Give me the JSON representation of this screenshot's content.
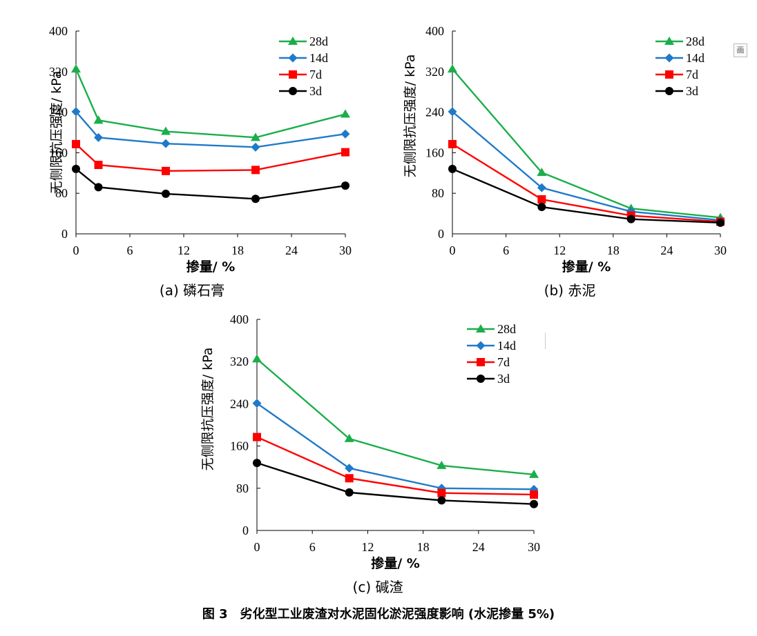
{
  "figure_caption": "图 3　劣化型工业废渣对水泥固化淤泥强度影响 (水泥掺量 5%)",
  "side_icon_glyph": "画",
  "chart_data": [
    {
      "type": "line",
      "panel_label": "(a)  磷石膏",
      "xlabel": "掺量/ %",
      "ylabel": "无侧限抗压强度/ kPa",
      "xlim": [
        0,
        30
      ],
      "ylim": [
        0,
        400
      ],
      "xticks": [
        0,
        6,
        12,
        18,
        24,
        30
      ],
      "yticks": [
        0,
        80,
        160,
        240,
        320,
        400
      ],
      "x": [
        0,
        2.5,
        10,
        20,
        30
      ],
      "legend_position": "top-right",
      "grid": false,
      "series": [
        {
          "name": "28d",
          "marker": "triangle",
          "color": "#1aae4a",
          "values": [
            325,
            224,
            202,
            190,
            236
          ]
        },
        {
          "name": "14d",
          "marker": "diamond",
          "color": "#1f7ac8",
          "values": [
            241,
            190,
            178,
            171,
            197
          ]
        },
        {
          "name": "7d",
          "marker": "square",
          "color": "#ff0000",
          "values": [
            177,
            136,
            124,
            126,
            161
          ]
        },
        {
          "name": "3d",
          "marker": "circle",
          "color": "#000000",
          "values": [
            128,
            92,
            79,
            69,
            95
          ]
        }
      ]
    },
    {
      "type": "line",
      "panel_label": "(b)  赤泥",
      "xlabel": "掺量/ %",
      "ylabel": "无侧限抗压强度/ kPa",
      "xlim": [
        0,
        30
      ],
      "ylim": [
        0,
        400
      ],
      "xticks": [
        0,
        6,
        12,
        18,
        24,
        30
      ],
      "yticks": [
        0,
        80,
        160,
        240,
        320,
        400
      ],
      "x": [
        0,
        10,
        20,
        30
      ],
      "legend_position": "top-right",
      "grid": false,
      "series": [
        {
          "name": "28d",
          "marker": "triangle",
          "color": "#1aae4a",
          "values": [
            325,
            121,
            50,
            32
          ]
        },
        {
          "name": "14d",
          "marker": "diamond",
          "color": "#1f7ac8",
          "values": [
            241,
            91,
            44,
            27
          ]
        },
        {
          "name": "7d",
          "marker": "square",
          "color": "#ff0000",
          "values": [
            177,
            68,
            36,
            24
          ]
        },
        {
          "name": "3d",
          "marker": "circle",
          "color": "#000000",
          "values": [
            128,
            53,
            29,
            22
          ]
        }
      ]
    },
    {
      "type": "line",
      "panel_label": "(c)  碱渣",
      "xlabel": "掺量/ %",
      "ylabel": "无侧限抗压强度/ kPa",
      "xlim": [
        0,
        30
      ],
      "ylim": [
        0,
        400
      ],
      "xticks": [
        0,
        6,
        12,
        18,
        24,
        30
      ],
      "yticks": [
        0,
        80,
        160,
        240,
        320,
        400
      ],
      "x": [
        0,
        10,
        20,
        30
      ],
      "legend_position": "top-right",
      "grid": false,
      "series": [
        {
          "name": "28d",
          "marker": "triangle",
          "color": "#1aae4a",
          "values": [
            325,
            174,
            123,
            106
          ]
        },
        {
          "name": "14d",
          "marker": "diamond",
          "color": "#1f7ac8",
          "values": [
            241,
            118,
            80,
            78
          ]
        },
        {
          "name": "7d",
          "marker": "square",
          "color": "#ff0000",
          "values": [
            177,
            99,
            71,
            68
          ]
        },
        {
          "name": "3d",
          "marker": "circle",
          "color": "#000000",
          "values": [
            128,
            72,
            57,
            50
          ]
        }
      ]
    }
  ]
}
